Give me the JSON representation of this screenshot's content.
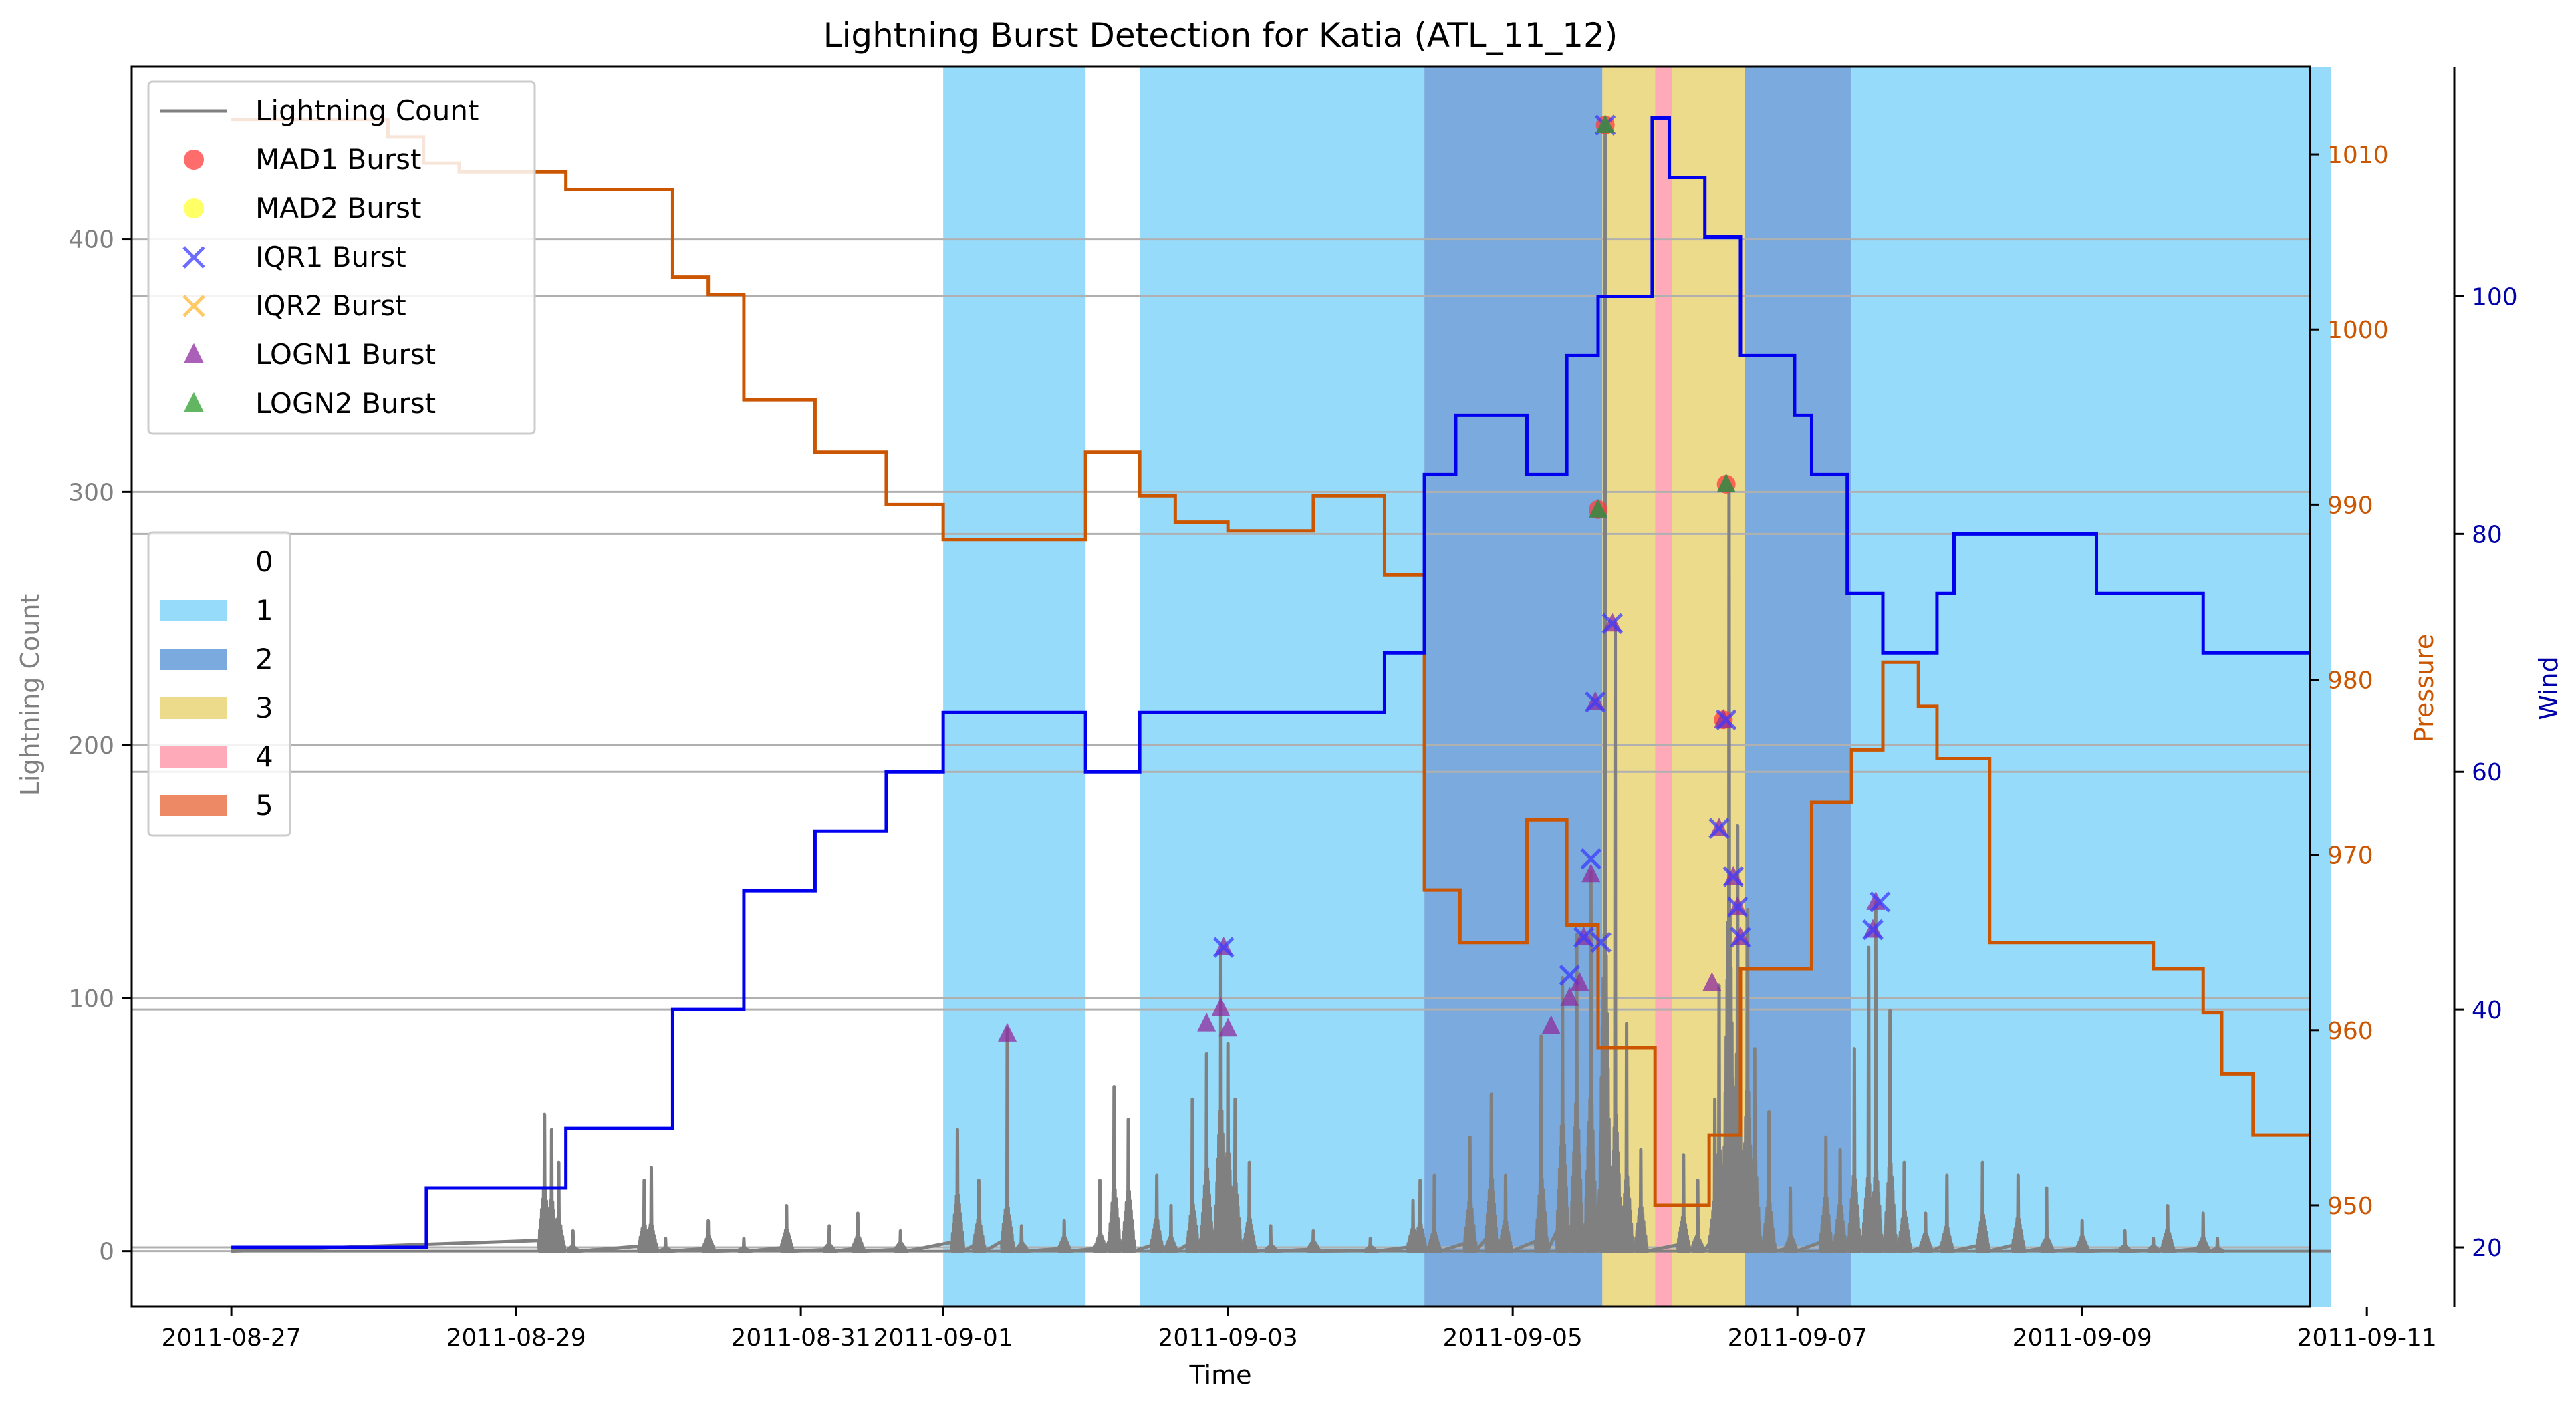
{
  "chart_data": {
    "type": "line",
    "title": "Lightning Burst Detection for Katia (ATL_11_12)",
    "xlabel": "Time",
    "ylabel_left": "Lightning Count",
    "ylabel_right1": "Pressure",
    "ylabel_right2": "Wind",
    "x_range_days": [
      -0.7,
      14.6
    ],
    "y_left_range": [
      -22,
      468
    ],
    "y_pressure_range": [
      944.2,
      1015.0
    ],
    "y_wind_range": [
      15.0,
      119.3
    ],
    "x_ticks": [
      {
        "day": 0,
        "label": "2011-08-27"
      },
      {
        "day": 2,
        "label": "2011-08-29"
      },
      {
        "day": 4,
        "label": "2011-08-31"
      },
      {
        "day": 5,
        "label": "2011-09-01"
      },
      {
        "day": 7,
        "label": "2011-09-03"
      },
      {
        "day": 9,
        "label": "2011-09-05"
      },
      {
        "day": 11,
        "label": "2011-09-07"
      },
      {
        "day": 13,
        "label": "2011-09-09"
      },
      {
        "day": 15,
        "label": "2011-09-11"
      }
    ],
    "y_left_ticks": [
      0,
      100,
      200,
      300,
      400
    ],
    "y_pressure_ticks": [
      950,
      960,
      970,
      980,
      990,
      1000,
      1010
    ],
    "y_wind_ticks": [
      20,
      40,
      60,
      80,
      100
    ],
    "legend_series": [
      {
        "label": "Lightning Count",
        "kind": "line",
        "color": "#808080"
      },
      {
        "label": "MAD1 Burst",
        "kind": "circle",
        "color": "#ff3b3b"
      },
      {
        "label": "MAD2 Burst",
        "kind": "circle",
        "color": "#ffff33"
      },
      {
        "label": "IQR1 Burst",
        "kind": "x",
        "color": "#3b3bff"
      },
      {
        "label": "IQR2 Burst",
        "kind": "x",
        "color": "#ffb733"
      },
      {
        "label": "LOGN1 Burst",
        "kind": "triangle",
        "color": "#8e2b9e"
      },
      {
        "label": "LOGN2 Burst",
        "kind": "triangle",
        "color": "#2e9e2e"
      }
    ],
    "legend_categories": [
      {
        "label": "0",
        "color": "#ffffff"
      },
      {
        "label": "1",
        "color": "#97dbfb"
      },
      {
        "label": "2",
        "color": "#7aaade"
      },
      {
        "label": "3",
        "color": "#eddb8c"
      },
      {
        "label": "4",
        "color": "#ffaab8"
      },
      {
        "label": "5",
        "color": "#ee8966"
      }
    ],
    "category_bands": [
      {
        "start": 5.0,
        "end": 6.0,
        "category": "1"
      },
      {
        "start": 6.38,
        "end": 8.38,
        "category": "1"
      },
      {
        "start": 8.38,
        "end": 9.63,
        "category": "2"
      },
      {
        "start": 9.63,
        "end": 10.0,
        "category": "3"
      },
      {
        "start": 10.0,
        "end": 10.12,
        "category": "4"
      },
      {
        "start": 10.12,
        "end": 10.63,
        "category": "3"
      },
      {
        "start": 10.63,
        "end": 11.38,
        "category": "2"
      },
      {
        "start": 11.38,
        "end": 14.75,
        "category": "1"
      }
    ],
    "pressure_series": {
      "color": "#cc5500",
      "points": [
        [
          0,
          1012
        ],
        [
          1.1,
          1012
        ],
        [
          1.1,
          1011
        ],
        [
          1.35,
          1011
        ],
        [
          1.35,
          1009.5
        ],
        [
          1.6,
          1009.5
        ],
        [
          1.6,
          1009
        ],
        [
          2.35,
          1009
        ],
        [
          2.35,
          1008
        ],
        [
          3.1,
          1008
        ],
        [
          3.1,
          1003
        ],
        [
          3.35,
          1003
        ],
        [
          3.35,
          1002
        ],
        [
          3.6,
          1002
        ],
        [
          3.6,
          996
        ],
        [
          4.1,
          996
        ],
        [
          4.1,
          993
        ],
        [
          4.6,
          993
        ],
        [
          4.6,
          990
        ],
        [
          5.0,
          990
        ],
        [
          5.0,
          988
        ],
        [
          6.0,
          988
        ],
        [
          6.0,
          993
        ],
        [
          6.38,
          993
        ],
        [
          6.38,
          990.5
        ],
        [
          6.63,
          990.5
        ],
        [
          6.63,
          989
        ],
        [
          7.0,
          989
        ],
        [
          7.0,
          988.5
        ],
        [
          7.6,
          988.5
        ],
        [
          7.6,
          990.5
        ],
        [
          8.1,
          990.5
        ],
        [
          8.1,
          986
        ],
        [
          8.38,
          986
        ],
        [
          8.38,
          968
        ],
        [
          8.63,
          968
        ],
        [
          8.63,
          965
        ],
        [
          9.1,
          965
        ],
        [
          9.1,
          972
        ],
        [
          9.38,
          972
        ],
        [
          9.38,
          966
        ],
        [
          9.6,
          966
        ],
        [
          9.6,
          959
        ],
        [
          10.0,
          959
        ],
        [
          10.0,
          950
        ],
        [
          10.38,
          950
        ],
        [
          10.38,
          954
        ],
        [
          10.6,
          954
        ],
        [
          10.6,
          963.5
        ],
        [
          11.1,
          963.5
        ],
        [
          11.1,
          973
        ],
        [
          11.38,
          973
        ],
        [
          11.38,
          976
        ],
        [
          11.6,
          976
        ],
        [
          11.6,
          981
        ],
        [
          11.85,
          981
        ],
        [
          11.85,
          978.5
        ],
        [
          11.98,
          978.5
        ],
        [
          11.98,
          975.5
        ],
        [
          12.35,
          975.5
        ],
        [
          12.35,
          965
        ],
        [
          13.5,
          965
        ],
        [
          13.5,
          963.5
        ],
        [
          13.85,
          963.5
        ],
        [
          13.85,
          961
        ],
        [
          13.98,
          961
        ],
        [
          13.98,
          957.5
        ],
        [
          14.2,
          957.5
        ],
        [
          14.2,
          954
        ],
        [
          14.6,
          954
        ]
      ]
    },
    "wind_series": {
      "color": "#0000ee",
      "points": [
        [
          0,
          20
        ],
        [
          1.37,
          20
        ],
        [
          1.37,
          25
        ],
        [
          2.35,
          25
        ],
        [
          2.35,
          30
        ],
        [
          3.1,
          30
        ],
        [
          3.1,
          40
        ],
        [
          3.6,
          40
        ],
        [
          3.6,
          50
        ],
        [
          4.1,
          50
        ],
        [
          4.1,
          55
        ],
        [
          4.6,
          55
        ],
        [
          4.6,
          60
        ],
        [
          5.0,
          60
        ],
        [
          5.0,
          65
        ],
        [
          6.0,
          65
        ],
        [
          6.0,
          60
        ],
        [
          6.38,
          60
        ],
        [
          6.38,
          65
        ],
        [
          8.1,
          65
        ],
        [
          8.1,
          70
        ],
        [
          8.38,
          70
        ],
        [
          8.38,
          85
        ],
        [
          8.6,
          85
        ],
        [
          8.6,
          90
        ],
        [
          9.1,
          90
        ],
        [
          9.1,
          85
        ],
        [
          9.38,
          85
        ],
        [
          9.38,
          95
        ],
        [
          9.6,
          95
        ],
        [
          9.6,
          100
        ],
        [
          9.98,
          100
        ],
        [
          9.98,
          115
        ],
        [
          10.1,
          115
        ],
        [
          10.1,
          110
        ],
        [
          10.35,
          110
        ],
        [
          10.35,
          105
        ],
        [
          10.6,
          105
        ],
        [
          10.6,
          95
        ],
        [
          10.98,
          95
        ],
        [
          10.98,
          90
        ],
        [
          11.1,
          90
        ],
        [
          11.1,
          85
        ],
        [
          11.35,
          85
        ],
        [
          11.35,
          75
        ],
        [
          11.6,
          75
        ],
        [
          11.6,
          70
        ],
        [
          11.98,
          70
        ],
        [
          11.98,
          75
        ],
        [
          12.1,
          75
        ],
        [
          12.1,
          80
        ],
        [
          13.1,
          80
        ],
        [
          13.1,
          75
        ],
        [
          13.85,
          75
        ],
        [
          13.85,
          70
        ],
        [
          14.6,
          70
        ]
      ]
    },
    "lightning_series": {
      "color": "#808080",
      "baseline": 0,
      "peaks": [
        [
          2.2,
          54
        ],
        [
          2.25,
          48
        ],
        [
          2.3,
          35
        ],
        [
          2.4,
          8
        ],
        [
          2.9,
          28
        ],
        [
          2.95,
          33
        ],
        [
          3.05,
          5
        ],
        [
          3.35,
          12
        ],
        [
          3.6,
          5
        ],
        [
          3.9,
          18
        ],
        [
          4.2,
          10
        ],
        [
          4.4,
          15
        ],
        [
          4.7,
          8
        ],
        [
          5.1,
          48
        ],
        [
          5.25,
          28
        ],
        [
          5.45,
          88
        ],
        [
          5.55,
          10
        ],
        [
          5.85,
          12
        ],
        [
          6.1,
          28
        ],
        [
          6.2,
          65
        ],
        [
          6.3,
          52
        ],
        [
          6.5,
          30
        ],
        [
          6.6,
          18
        ],
        [
          6.75,
          60
        ],
        [
          6.85,
          78
        ],
        [
          6.95,
          118
        ],
        [
          7.0,
          82
        ],
        [
          7.05,
          60
        ],
        [
          7.15,
          35
        ],
        [
          7.3,
          10
        ],
        [
          7.6,
          8
        ],
        [
          8.0,
          5
        ],
        [
          8.3,
          20
        ],
        [
          8.35,
          28
        ],
        [
          8.45,
          30
        ],
        [
          8.7,
          45
        ],
        [
          8.85,
          62
        ],
        [
          8.95,
          30
        ],
        [
          9.2,
          85
        ],
        [
          9.35,
          108
        ],
        [
          9.45,
          125
        ],
        [
          9.55,
          150
        ],
        [
          9.65,
          445
        ],
        [
          9.72,
          248
        ],
        [
          9.8,
          90
        ],
        [
          9.9,
          40
        ],
        [
          10.2,
          38
        ],
        [
          10.3,
          28
        ],
        [
          10.42,
          60
        ],
        [
          10.45,
          105
        ],
        [
          10.52,
          302
        ],
        [
          10.58,
          168
        ],
        [
          10.65,
          135
        ],
        [
          10.7,
          80
        ],
        [
          10.8,
          55
        ],
        [
          10.95,
          25
        ],
        [
          11.2,
          45
        ],
        [
          11.3,
          40
        ],
        [
          11.4,
          80
        ],
        [
          11.5,
          120
        ],
        [
          11.55,
          138
        ],
        [
          11.65,
          95
        ],
        [
          11.75,
          35
        ],
        [
          11.9,
          15
        ],
        [
          12.05,
          30
        ],
        [
          12.3,
          35
        ],
        [
          12.55,
          30
        ],
        [
          12.75,
          25
        ],
        [
          13.0,
          12
        ],
        [
          13.3,
          8
        ],
        [
          13.5,
          5
        ],
        [
          13.6,
          18
        ],
        [
          13.85,
          15
        ],
        [
          13.95,
          5
        ]
      ]
    },
    "markers": [
      {
        "type": "logn1",
        "x": 5.45,
        "y": 86
      },
      {
        "type": "logn1",
        "x": 6.85,
        "y": 90
      },
      {
        "type": "logn1",
        "x": 6.95,
        "y": 96
      },
      {
        "type": "logn1",
        "x": 7.0,
        "y": 88
      },
      {
        "type": "logn1",
        "x": 6.97,
        "y": 120
      },
      {
        "type": "iqr1",
        "x": 6.97,
        "y": 120
      },
      {
        "type": "logn1",
        "x": 9.27,
        "y": 89
      },
      {
        "type": "logn1",
        "x": 9.4,
        "y": 100
      },
      {
        "type": "iqr1",
        "x": 9.4,
        "y": 109
      },
      {
        "type": "logn1",
        "x": 9.47,
        "y": 106
      },
      {
        "type": "logn1",
        "x": 9.5,
        "y": 124
      },
      {
        "type": "iqr1",
        "x": 9.5,
        "y": 124
      },
      {
        "type": "logn1",
        "x": 9.55,
        "y": 149
      },
      {
        "type": "iqr1",
        "x": 9.55,
        "y": 155
      },
      {
        "type": "iqr1",
        "x": 9.62,
        "y": 122
      },
      {
        "type": "logn1",
        "x": 9.58,
        "y": 217
      },
      {
        "type": "iqr1",
        "x": 9.58,
        "y": 217
      },
      {
        "type": "mad1",
        "x": 9.6,
        "y": 293
      },
      {
        "type": "logn1",
        "x": 9.6,
        "y": 293
      },
      {
        "type": "logn2",
        "x": 9.6,
        "y": 293
      },
      {
        "type": "mad1",
        "x": 9.65,
        "y": 445
      },
      {
        "type": "iqr1",
        "x": 9.65,
        "y": 445
      },
      {
        "type": "logn1",
        "x": 9.65,
        "y": 445
      },
      {
        "type": "logn2",
        "x": 9.65,
        "y": 445
      },
      {
        "type": "logn1",
        "x": 9.7,
        "y": 248
      },
      {
        "type": "iqr1",
        "x": 9.7,
        "y": 248
      },
      {
        "type": "logn1",
        "x": 10.4,
        "y": 106
      },
      {
        "type": "logn1",
        "x": 10.45,
        "y": 167
      },
      {
        "type": "iqr1",
        "x": 10.45,
        "y": 167
      },
      {
        "type": "mad1",
        "x": 10.48,
        "y": 210
      },
      {
        "type": "logn1",
        "x": 10.48,
        "y": 210
      },
      {
        "type": "iqr1",
        "x": 10.5,
        "y": 210
      },
      {
        "type": "mad1",
        "x": 10.5,
        "y": 303
      },
      {
        "type": "logn1",
        "x": 10.5,
        "y": 303
      },
      {
        "type": "logn2",
        "x": 10.5,
        "y": 303
      },
      {
        "type": "logn1",
        "x": 10.55,
        "y": 148
      },
      {
        "type": "iqr1",
        "x": 10.55,
        "y": 148
      },
      {
        "type": "logn1",
        "x": 10.58,
        "y": 136
      },
      {
        "type": "iqr1",
        "x": 10.58,
        "y": 136
      },
      {
        "type": "logn1",
        "x": 10.6,
        "y": 124
      },
      {
        "type": "iqr1",
        "x": 10.6,
        "y": 124
      },
      {
        "type": "logn1",
        "x": 11.53,
        "y": 127
      },
      {
        "type": "iqr1",
        "x": 11.53,
        "y": 127
      },
      {
        "type": "logn1",
        "x": 11.55,
        "y": 138
      },
      {
        "type": "iqr1",
        "x": 11.58,
        "y": 138
      }
    ]
  }
}
